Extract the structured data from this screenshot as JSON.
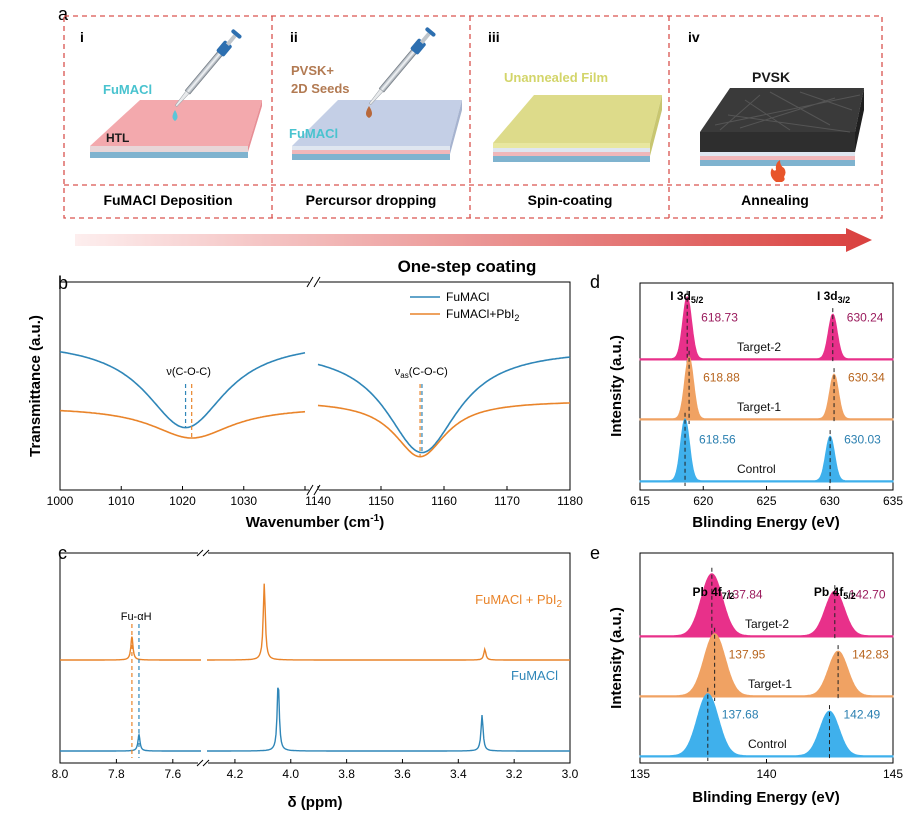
{
  "colors": {
    "dash": "#d9534f",
    "blue": "#2f86b8",
    "orange": "#e9842a",
    "magenta": "#e8308a",
    "peach": "#f0a263",
    "skyblue": "#3fb0ec",
    "arrow_from": "#fbe4e4",
    "arrow_to": "#d9403e",
    "pink": "#f0a3a8",
    "lavender": "#c4cfe6",
    "olive": "#dddb8a",
    "pvsk": "#3a3a3a"
  },
  "panel_a": {
    "letter": "a",
    "steps": [
      {
        "roman": "i",
        "caption": "FuMACl Deposition",
        "labels": [
          "FuMACl",
          "HTL"
        ],
        "icons": [
          "pipette-icon",
          "droplet-icon"
        ]
      },
      {
        "roman": "ii",
        "caption": "Percursor dropping",
        "labels": [
          "PVSK+",
          "2D Seeds",
          "FuMACl"
        ],
        "icons": [
          "pipette-icon",
          "droplet-icon"
        ]
      },
      {
        "roman": "iii",
        "caption": "Spin-coating",
        "labels": [
          "Unannealed Film"
        ],
        "icons": []
      },
      {
        "roman": "iv",
        "caption": "Annealing",
        "labels": [
          "PVSK"
        ],
        "icons": [
          "flame-icon"
        ]
      }
    ],
    "arrow_label": "One-step coating"
  },
  "chart_data": [
    {
      "panel": "b",
      "type": "line",
      "xlabel": "Wavenumber (cm",
      "xlabel_sup": "-1",
      "xlabel_end": ")",
      "ylabel": "Transmittance (a.u.)",
      "x_segments": [
        {
          "xlim": [
            1000,
            1040
          ],
          "ticks": [
            1000,
            1010,
            1020,
            1030,
            1040
          ]
        },
        {
          "xlim": [
            1140,
            1180
          ],
          "ticks": [
            1140,
            1150,
            1160,
            1170,
            1180
          ]
        }
      ],
      "tick_labels": [
        "1000",
        "1010",
        "1020",
        "1030",
        "1140",
        "1150",
        "1160",
        "1170",
        "1180"
      ],
      "series": [
        {
          "name": "FuMACl",
          "color": "#2f86b8",
          "segments": [
            {
              "baseline": 0.72,
              "center": 1020.5,
              "depth": 0.42,
              "width": 8
            },
            {
              "baseline": 0.68,
              "center": 1156.5,
              "depth": 0.5,
              "width": 7
            }
          ]
        },
        {
          "name": "FuMACl+PbI",
          "name_sub": "2",
          "color": "#e9842a",
          "segments": [
            {
              "baseline": 0.4,
              "center": 1021.5,
              "depth": 0.15,
              "width": 8
            },
            {
              "baseline": 0.43,
              "center": 1156.2,
              "depth": 0.27,
              "width": 5
            }
          ]
        }
      ],
      "annotations": [
        {
          "text": "ν(C-O-C)",
          "x": 1021
        },
        {
          "text": "ν",
          "sub": "as",
          "text_end": "(C-O-C)",
          "x": 1156.4
        }
      ],
      "legend_position": "top-right"
    },
    {
      "panel": "c",
      "type": "line",
      "xlabel": "δ (ppm)",
      "x_segments": [
        {
          "xlim": [
            8.0,
            7.5
          ],
          "ticks": [
            8.0,
            7.8,
            7.6
          ]
        },
        {
          "xlim": [
            4.3,
            3.0
          ],
          "ticks": [
            4.2,
            4.0,
            3.8,
            3.6,
            3.4,
            3.2,
            3.0
          ]
        }
      ],
      "tick_labels": [
        "8.0",
        "7.8",
        "7.6",
        "4.2",
        "4.0",
        "3.8",
        "3.6",
        "3.4",
        "3.2",
        "3.0"
      ],
      "series": [
        {
          "name": "FuMACl + PbI",
          "name_sub": "2",
          "color": "#e9842a",
          "peaks": [
            {
              "x": 7.745,
              "height": 0.26
            },
            {
              "x": 4.095,
              "height": 0.85
            },
            {
              "x": 3.305,
              "height": 0.12
            }
          ]
        },
        {
          "name": "FuMACl",
          "color": "#2f86b8",
          "peaks": [
            {
              "x": 7.72,
              "height": 0.18
            },
            {
              "x": 4.045,
              "height": 0.78
            },
            {
              "x": 3.315,
              "height": 0.4
            }
          ]
        }
      ],
      "annotations": [
        {
          "text": "Fu-αH",
          "x": 7.73
        }
      ]
    },
    {
      "panel": "d",
      "type": "area",
      "xlabel": "Blinding Energy (eV)",
      "ylabel": "Intensity (a.u.)",
      "xlim": [
        615,
        635
      ],
      "ticks": [
        615,
        620,
        625,
        630,
        635
      ],
      "tick_labels": [
        "615",
        "620",
        "625",
        "630",
        "635"
      ],
      "peak_labels": [
        {
          "text": "I 3d",
          "sub": "5/2",
          "x": 618.7
        },
        {
          "text": "I 3d",
          "sub": "3/2",
          "x": 630.3
        }
      ],
      "series": [
        {
          "name": "Target-2",
          "color": "#e8308a",
          "peaks": [
            618.73,
            630.24
          ],
          "peak_text": [
            "618.73",
            "630.24"
          ]
        },
        {
          "name": "Target-1",
          "color": "#f0a263",
          "peaks": [
            618.88,
            630.34
          ],
          "peak_text": [
            "618.88",
            "630.34"
          ]
        },
        {
          "name": "Control",
          "color": "#3fb0ec",
          "peaks": [
            618.56,
            630.03
          ],
          "peak_text": [
            "618.56",
            "630.03"
          ]
        }
      ],
      "label_colors": [
        "#9a1a5c",
        "#b7641d",
        "#2a7fb0"
      ]
    },
    {
      "panel": "e",
      "type": "area",
      "xlabel": "Blinding Energy (eV)",
      "ylabel": "Intensity (a.u.)",
      "xlim": [
        135,
        145
      ],
      "ticks": [
        135,
        140,
        145
      ],
      "tick_labels": [
        "135",
        "140",
        "145"
      ],
      "peak_labels": [
        {
          "text": "Pb 4f",
          "sub": "7/2",
          "x": 137.9
        },
        {
          "text": "Pb 4f",
          "sub": "5/2",
          "x": 142.7
        }
      ],
      "series": [
        {
          "name": "Target-2",
          "color": "#e8308a",
          "peaks": [
            137.84,
            142.7
          ],
          "peak_text": [
            "137.84",
            "142.70"
          ]
        },
        {
          "name": "Target-1",
          "color": "#f0a263",
          "peaks": [
            137.95,
            142.83
          ],
          "peak_text": [
            "137.95",
            "142.83"
          ]
        },
        {
          "name": "Control",
          "color": "#3fb0ec",
          "peaks": [
            137.68,
            142.49
          ],
          "peak_text": [
            "137.68",
            "142.49"
          ]
        }
      ],
      "label_colors": [
        "#9a1a5c",
        "#b7641d",
        "#2a7fb0"
      ]
    }
  ]
}
